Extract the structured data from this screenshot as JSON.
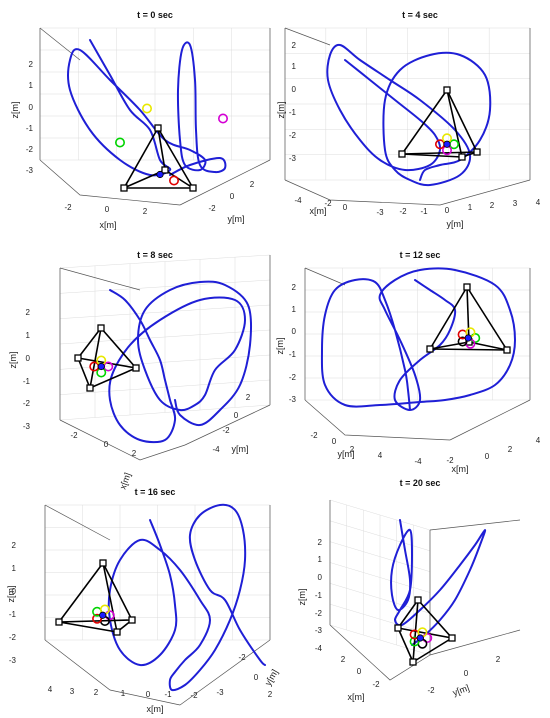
{
  "chart_data": [
    {
      "type": "line",
      "title": "t = 0 sec",
      "xlabel": "x[m]",
      "ylabel": "y[m]",
      "zlabel": "z[m]",
      "z_ticks": [
        "2",
        "1",
        "0",
        "-1",
        "-2",
        "-3"
      ],
      "x_ticks": [
        "-2",
        "0",
        "2"
      ],
      "y_ticks": [
        "-2",
        "0",
        "2"
      ],
      "targets": [
        {
          "color": "#e8e800",
          "x": 0.5,
          "y": 2.5,
          "z": 1.5
        },
        {
          "color": "#d400d4",
          "x": 2.5,
          "y": 1.5,
          "z": 1.2
        },
        {
          "color": "#00d400",
          "x": -2.5,
          "y": 0.0,
          "z": 0.0
        },
        {
          "color": "#e00000",
          "x": 1.0,
          "y": -1.0,
          "z": -3.0
        }
      ]
    },
    {
      "type": "line",
      "title": "t = 4 sec",
      "xlabel": "x[m]",
      "ylabel": "y[m]",
      "zlabel": "z[m]",
      "z_ticks": [
        "2",
        "1",
        "0",
        "-1",
        "-2",
        "-3"
      ],
      "x_ticks": [
        "-4",
        "-2",
        "0"
      ],
      "y_ticks": [
        "-3",
        "-2",
        "-1",
        "0",
        "1",
        "2",
        "3",
        "4"
      ],
      "targets": [
        {
          "color": "#00d400",
          "x": 0.3,
          "y": 0.8,
          "z": -1.2
        },
        {
          "color": "#d400d4",
          "x": -0.2,
          "y": 0.3,
          "z": -1.4
        },
        {
          "color": "#e00000",
          "x": 0.4,
          "y": 0.9,
          "z": -1.7
        },
        {
          "color": "#e8e800",
          "x": 0.1,
          "y": 0.5,
          "z": -1.8
        }
      ]
    },
    {
      "type": "line",
      "title": "t = 8 sec",
      "xlabel": "x[m]",
      "ylabel": "y[m]",
      "zlabel": "z[m]",
      "z_ticks": [
        "2",
        "1",
        "0",
        "-1",
        "-2",
        "-3"
      ],
      "x_ticks": [
        "-2",
        "0",
        "2"
      ],
      "y_ticks": [
        "-4",
        "-2",
        "0",
        "2"
      ],
      "targets": [
        {
          "color": "#d400d4",
          "x": -0.2,
          "y": -2.4,
          "z": 0.0
        },
        {
          "color": "#00d400",
          "x": 0.0,
          "y": -2.0,
          "z": 0.0
        },
        {
          "color": "#e00000",
          "x": 0.3,
          "y": -1.5,
          "z": -0.2
        },
        {
          "color": "#e8e800",
          "x": 0.1,
          "y": -2.1,
          "z": -0.3
        }
      ]
    },
    {
      "type": "line",
      "title": "t = 12 sec",
      "xlabel": "x[m]",
      "ylabel": "y[m]",
      "zlabel": "z[m]",
      "z_ticks": [
        "2",
        "1",
        "0",
        "-1",
        "-2",
        "-3"
      ],
      "x_ticks": [
        "-4",
        "-2",
        "0",
        "2",
        "4"
      ],
      "y_ticks": [
        "-2",
        "0",
        "2",
        "4"
      ],
      "targets": [
        {
          "color": "#00d400",
          "x": 0.0,
          "y": 0.5,
          "z": 0.5
        },
        {
          "color": "#d400d4",
          "x": 0.1,
          "y": 0.6,
          "z": 0.3
        },
        {
          "color": "#000000",
          "x": 0.4,
          "y": 0.9,
          "z": 0.0
        },
        {
          "color": "#e00000",
          "x": 0.1,
          "y": 0.6,
          "z": 0.1
        },
        {
          "color": "#e8e800",
          "x": -0.3,
          "y": 0.2,
          "z": 0.0
        }
      ]
    },
    {
      "type": "line",
      "title": "t = 16 sec",
      "xlabel": "x[m]",
      "ylabel": "y[m]",
      "zlabel": "z[m]",
      "z_ticks": [
        "2",
        "1",
        "0",
        "-1",
        "-2",
        "-3"
      ],
      "x_ticks": [
        "4",
        "3",
        "2",
        "1",
        "0",
        "-1",
        "-2",
        "-3"
      ],
      "y_ticks": [
        "-2",
        "0",
        "2"
      ],
      "targets": [
        {
          "color": "#d400d4",
          "x": 1.5,
          "y": -1.5,
          "z": -0.6
        },
        {
          "color": "#000000",
          "x": 2.5,
          "y": -1.5,
          "z": -0.7
        },
        {
          "color": "#e00000",
          "x": 2.7,
          "y": -1.7,
          "z": -1.1
        },
        {
          "color": "#00d400",
          "x": 2.0,
          "y": -1.4,
          "z": -0.8
        },
        {
          "color": "#e8e800",
          "x": 1.8,
          "y": -1.4,
          "z": -1.0
        }
      ]
    },
    {
      "type": "line",
      "title": "t = 20 sec",
      "xlabel": "x[m]",
      "ylabel": "y[m]",
      "zlabel": "z[m]",
      "z_ticks": [
        "2",
        "1",
        "0",
        "-1",
        "-2",
        "-3",
        "-4"
      ],
      "x_ticks": [
        "2",
        "0",
        "-2"
      ],
      "y_ticks": [
        "-2",
        "0",
        "2"
      ],
      "targets": [
        {
          "color": "#d400d4",
          "x": 0.2,
          "y": -0.4,
          "z": -2.8
        },
        {
          "color": "#000000",
          "x": 0.2,
          "y": -0.3,
          "z": -3.0
        },
        {
          "color": "#00d400",
          "x": 0.4,
          "y": 0.1,
          "z": -3.5
        },
        {
          "color": "#e00000",
          "x": 0.2,
          "y": -0.3,
          "z": -3.6
        },
        {
          "color": "#e8e800",
          "x": 0.1,
          "y": -0.2,
          "z": -3.4
        }
      ]
    }
  ]
}
